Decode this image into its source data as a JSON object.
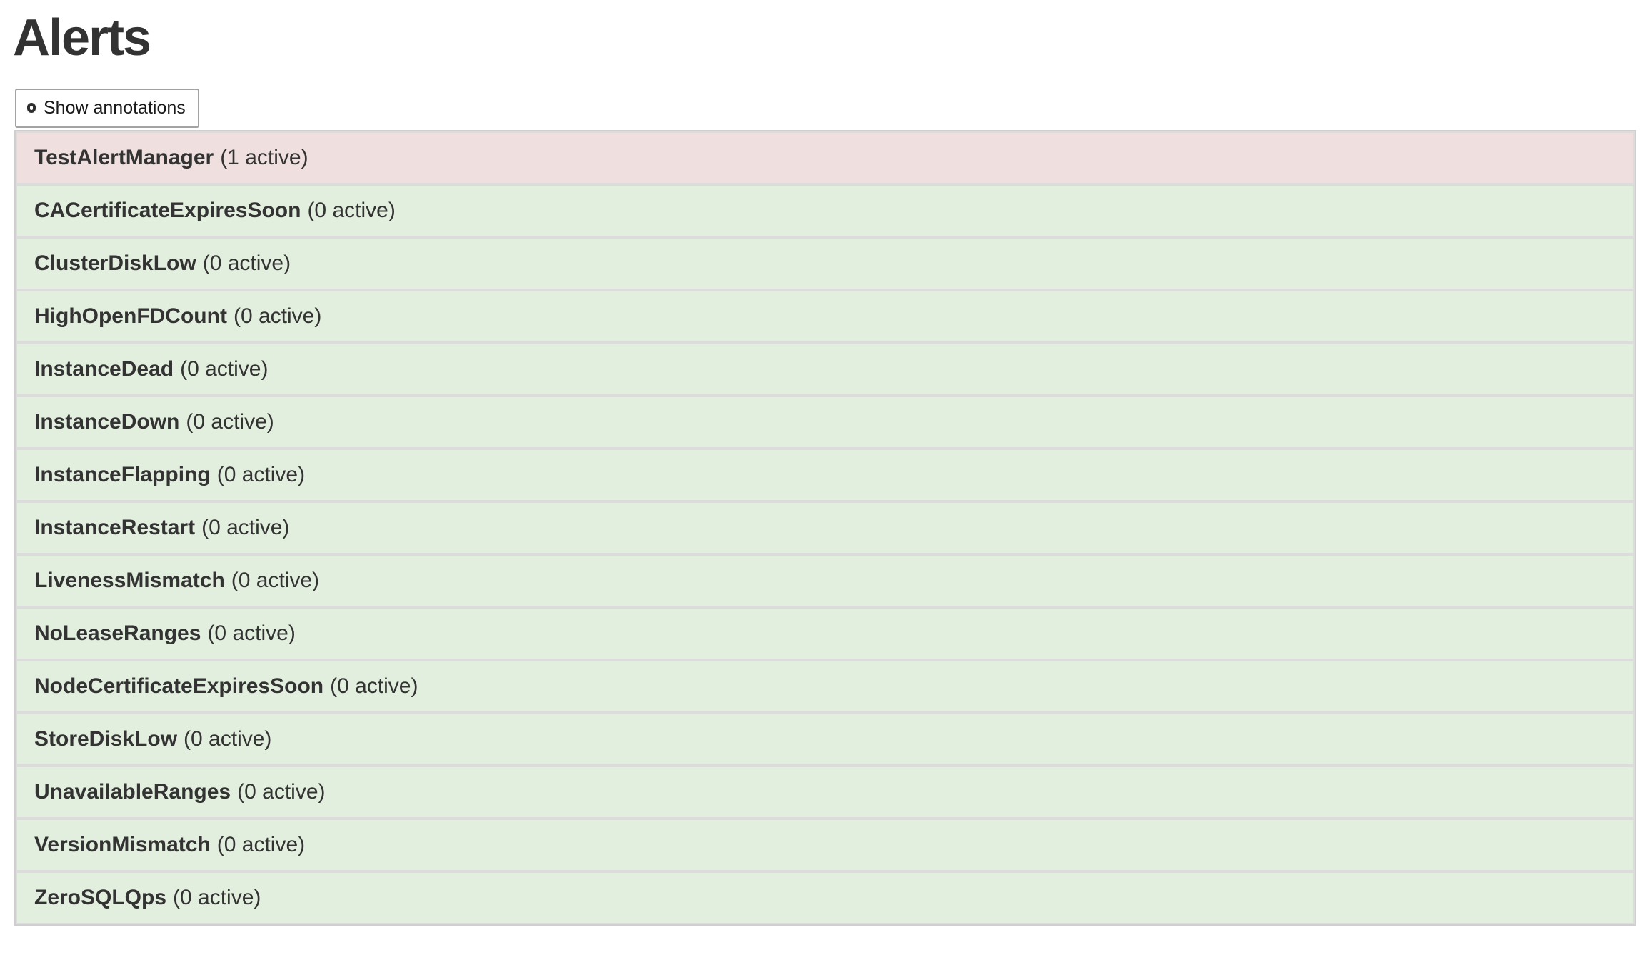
{
  "page_title": "Alerts",
  "toolbar": {
    "show_annotations_label": "Show annotations",
    "checkbox_checked": false
  },
  "alerts": [
    {
      "name": "TestAlertManager",
      "count_label": "(1 active)",
      "active_count": 1,
      "state": "firing"
    },
    {
      "name": "CACertificateExpiresSoon",
      "count_label": "(0 active)",
      "active_count": 0,
      "state": "inactive"
    },
    {
      "name": "ClusterDiskLow",
      "count_label": "(0 active)",
      "active_count": 0,
      "state": "inactive"
    },
    {
      "name": "HighOpenFDCount",
      "count_label": "(0 active)",
      "active_count": 0,
      "state": "inactive"
    },
    {
      "name": "InstanceDead",
      "count_label": "(0 active)",
      "active_count": 0,
      "state": "inactive"
    },
    {
      "name": "InstanceDown",
      "count_label": "(0 active)",
      "active_count": 0,
      "state": "inactive"
    },
    {
      "name": "InstanceFlapping",
      "count_label": "(0 active)",
      "active_count": 0,
      "state": "inactive"
    },
    {
      "name": "InstanceRestart",
      "count_label": "(0 active)",
      "active_count": 0,
      "state": "inactive"
    },
    {
      "name": "LivenessMismatch",
      "count_label": "(0 active)",
      "active_count": 0,
      "state": "inactive"
    },
    {
      "name": "NoLeaseRanges",
      "count_label": "(0 active)",
      "active_count": 0,
      "state": "inactive"
    },
    {
      "name": "NodeCertificateExpiresSoon",
      "count_label": "(0 active)",
      "active_count": 0,
      "state": "inactive"
    },
    {
      "name": "StoreDiskLow",
      "count_label": "(0 active)",
      "active_count": 0,
      "state": "inactive"
    },
    {
      "name": "UnavailableRanges",
      "count_label": "(0 active)",
      "active_count": 0,
      "state": "inactive"
    },
    {
      "name": "VersionMismatch",
      "count_label": "(0 active)",
      "active_count": 0,
      "state": "inactive"
    },
    {
      "name": "ZeroSQLQps",
      "count_label": "(0 active)",
      "active_count": 0,
      "state": "inactive"
    }
  ],
  "colors": {
    "firing_bg": "#efdfdf",
    "inactive_bg": "#e3efde",
    "list_border": "#cfcfcf",
    "list_divider": "#dcdcdc",
    "text": "#333333",
    "button_border": "#a3a3a3"
  }
}
